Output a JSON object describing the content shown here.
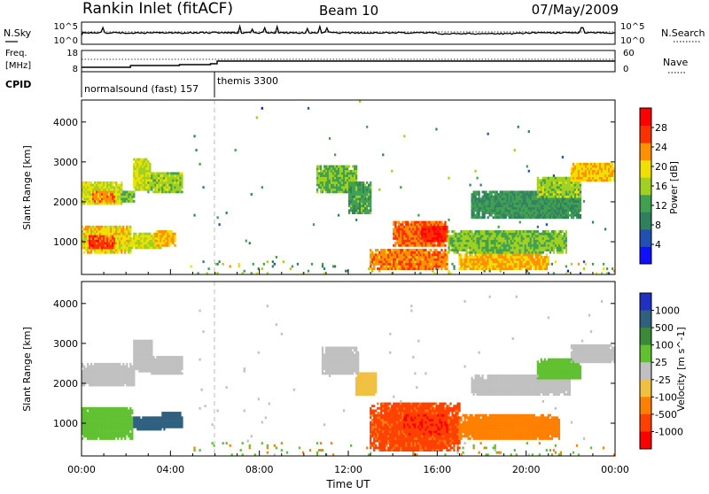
{
  "header": {
    "station": "Rankin Inlet (fitACF)",
    "beam": "Beam 10",
    "date": "07/May/2009"
  },
  "sky_panel": {
    "left_label": "N.Sky",
    "right_label": "N.Search",
    "left_ticks": [
      "10^5",
      "10^0"
    ],
    "right_ticks": [
      "10^5",
      "10^0"
    ]
  },
  "freq_panel": {
    "left_label_line1": "Freq.",
    "left_label_line2": "[MHz]",
    "left_ticks": [
      "18",
      "8"
    ],
    "right_label": "Nave",
    "right_ticks": [
      "60",
      "0"
    ]
  },
  "cpid_panel": {
    "label": "CPID",
    "entries": [
      {
        "text": "normalsound (fast) 157",
        "start_hour": 0
      },
      {
        "text": "themis 3300",
        "start_hour": 6
      }
    ]
  },
  "colors": {
    "power": [
      "#1010ff",
      "#2050b0",
      "#308060",
      "#40a050",
      "#a0d020",
      "#f0e000",
      "#ff9000",
      "#ff3000",
      "#ff0000"
    ],
    "velocity": [
      "#2030c0",
      "#306080",
      "#3a8a3a",
      "#60c030",
      "#c0c0c0",
      "#f0c040",
      "#ff8000",
      "#ff4000",
      "#ff0000"
    ]
  },
  "chart_data": [
    {
      "type": "heatmap",
      "name": "power",
      "ylabel": "Slant Range [km]",
      "ylim": [
        180,
        4550
      ],
      "yticks": [
        "1000",
        "2000",
        "3000",
        "4000"
      ],
      "yticks_values": [
        1000,
        2000,
        3000,
        4000
      ],
      "xlim": [
        0,
        24
      ],
      "xticks": [
        "00:00",
        "04:00",
        "08:00",
        "12:00",
        "16:00",
        "20:00",
        "00:00"
      ],
      "xticks_values": [
        0,
        4,
        8,
        12,
        16,
        20,
        24
      ],
      "colorbar_label": "Power [dB]",
      "colorbar_ticks": [
        "4",
        "8",
        "12",
        "16",
        "20",
        "24",
        "28"
      ],
      "colorbar_range": [
        0,
        32
      ],
      "regions": [
        {
          "t0": 0.0,
          "t1": 1.8,
          "r0": 1900,
          "r1": 2500,
          "v": 18
        },
        {
          "t0": 0.5,
          "t1": 1.5,
          "r0": 2000,
          "r1": 2250,
          "v": 24
        },
        {
          "t0": 1.8,
          "t1": 2.4,
          "r0": 2000,
          "r1": 2300,
          "v": 14
        },
        {
          "t0": 2.3,
          "t1": 3.1,
          "r0": 2300,
          "r1": 3100,
          "v": 18
        },
        {
          "t0": 3.0,
          "t1": 4.6,
          "r0": 2200,
          "r1": 2750,
          "v": 16
        },
        {
          "t0": 0.0,
          "t1": 2.2,
          "r0": 700,
          "r1": 1400,
          "v": 20
        },
        {
          "t0": 0.3,
          "t1": 1.5,
          "r0": 800,
          "r1": 1150,
          "v": 27
        },
        {
          "t0": 2.2,
          "t1": 3.6,
          "r0": 800,
          "r1": 1200,
          "v": 18
        },
        {
          "t0": 3.3,
          "t1": 4.2,
          "r0": 900,
          "r1": 1300,
          "v": 22
        },
        {
          "t0": 10.6,
          "t1": 12.4,
          "r0": 2200,
          "r1": 2900,
          "v": 14
        },
        {
          "t0": 12.0,
          "t1": 13.0,
          "r0": 1700,
          "r1": 2500,
          "v": 12
        },
        {
          "t0": 13.0,
          "t1": 16.5,
          "r0": 300,
          "r1": 800,
          "v": 24
        },
        {
          "t0": 14.0,
          "t1": 16.5,
          "r0": 900,
          "r1": 1500,
          "v": 25
        },
        {
          "t0": 15.3,
          "t1": 16.4,
          "r0": 1000,
          "r1": 1400,
          "v": 29
        },
        {
          "t0": 16.5,
          "t1": 21.8,
          "r0": 700,
          "r1": 1300,
          "v": 15
        },
        {
          "t0": 17.0,
          "t1": 21.0,
          "r0": 300,
          "r1": 700,
          "v": 22
        },
        {
          "t0": 17.5,
          "t1": 22.5,
          "r0": 1600,
          "r1": 2300,
          "v": 11
        },
        {
          "t0": 20.5,
          "t1": 22.5,
          "r0": 2100,
          "r1": 2600,
          "v": 16
        },
        {
          "t0": 22.0,
          "t1": 24.0,
          "r0": 2500,
          "r1": 3000,
          "v": 21
        }
      ]
    },
    {
      "type": "heatmap",
      "name": "velocity",
      "ylabel": "Slant Range [km]",
      "ylim": [
        180,
        4550
      ],
      "yticks": [
        "1000",
        "2000",
        "3000",
        "4000"
      ],
      "yticks_values": [
        1000,
        2000,
        3000,
        4000
      ],
      "xlim": [
        0,
        24
      ],
      "xticks": [
        "00:00",
        "04:00",
        "08:00",
        "12:00",
        "16:00",
        "20:00",
        "00:00"
      ],
      "xticks_values": [
        0,
        4,
        8,
        12,
        16,
        20,
        24
      ],
      "xlabel": "Time UT",
      "colorbar_label": "Velocity [m s^-1]",
      "colorbar_ticks": [
        "1000",
        "500",
        "100",
        "25",
        "-25",
        "-100",
        "-500",
        "-1000"
      ],
      "regions": [
        {
          "t0": 0.0,
          "t1": 2.4,
          "r0": 1900,
          "r1": 2500,
          "v": 0
        },
        {
          "t0": 2.3,
          "t1": 3.2,
          "r0": 2300,
          "r1": 3100,
          "v": 0
        },
        {
          "t0": 3.1,
          "t1": 4.6,
          "r0": 2200,
          "r1": 2700,
          "v": 0
        },
        {
          "t0": 0.0,
          "t1": 2.3,
          "r0": 600,
          "r1": 1400,
          "v": 60
        },
        {
          "t0": 2.3,
          "t1": 3.8,
          "r0": 800,
          "r1": 1150,
          "v": 700
        },
        {
          "t0": 3.6,
          "t1": 4.6,
          "r0": 900,
          "r1": 1300,
          "v": 800
        },
        {
          "t0": 10.8,
          "t1": 12.5,
          "r0": 2200,
          "r1": 2900,
          "v": 0
        },
        {
          "t0": 12.3,
          "t1": 13.3,
          "r0": 1700,
          "r1": 2300,
          "v": -60
        },
        {
          "t0": 13.0,
          "t1": 17.0,
          "r0": 300,
          "r1": 1500,
          "v": -600
        },
        {
          "t0": 14.5,
          "t1": 16.5,
          "r0": 700,
          "r1": 1200,
          "v": -900
        },
        {
          "t0": 17.0,
          "t1": 21.5,
          "r0": 600,
          "r1": 1200,
          "v": -300
        },
        {
          "t0": 17.5,
          "t1": 22.0,
          "r0": 1700,
          "r1": 2200,
          "v": 0
        },
        {
          "t0": 20.5,
          "t1": 22.5,
          "r0": 2100,
          "r1": 2600,
          "v": 50
        },
        {
          "t0": 22.0,
          "t1": 24.0,
          "r0": 2500,
          "r1": 3000,
          "v": 0
        }
      ]
    }
  ]
}
